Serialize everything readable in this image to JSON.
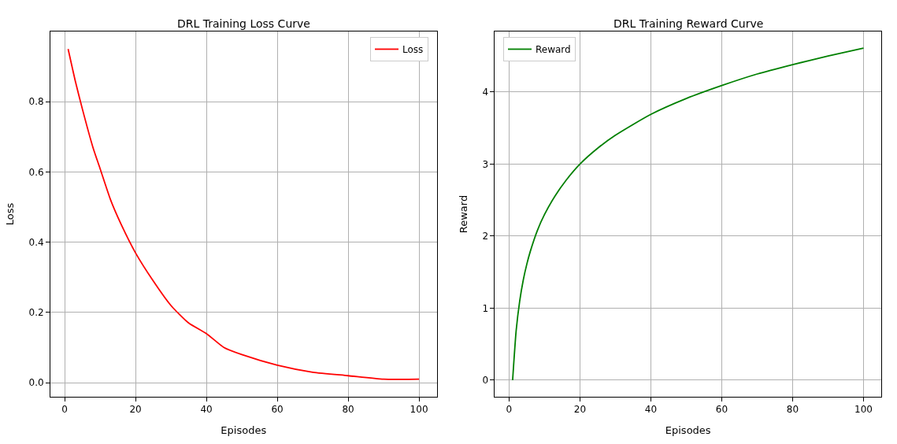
{
  "chart_data": [
    {
      "type": "line",
      "title": "DRL Training Loss Curve",
      "xlabel": "Episodes",
      "ylabel": "Loss",
      "x": [
        1,
        3,
        5,
        8,
        10,
        13,
        16,
        20,
        25,
        30,
        35,
        40,
        45,
        50,
        60,
        70,
        80,
        90,
        100
      ],
      "series": [
        {
          "name": "Loss",
          "color": "#ff0000",
          "values": [
            0.95,
            0.86,
            0.78,
            0.67,
            0.61,
            0.52,
            0.45,
            0.37,
            0.29,
            0.22,
            0.17,
            0.14,
            0.1,
            0.08,
            0.05,
            0.03,
            0.02,
            0.01,
            0.01
          ]
        }
      ],
      "xlim": [
        -4,
        105
      ],
      "ylim": [
        -0.04,
        1.0
      ],
      "xticks": [
        0,
        20,
        40,
        60,
        80,
        100
      ],
      "yticks": [
        {
          "value": 0,
          "label": "0.0"
        },
        {
          "value": 0.2,
          "label": "0.2"
        },
        {
          "value": 0.4,
          "label": "0.4"
        },
        {
          "value": 0.6,
          "label": "0.6"
        },
        {
          "value": 0.8,
          "label": "0.8"
        }
      ],
      "grid": true,
      "legend": "top right"
    },
    {
      "type": "line",
      "title": "DRL Training Reward Curve",
      "xlabel": "Episodes",
      "ylabel": "Reward",
      "x": [
        1,
        2,
        3,
        4,
        5,
        6,
        8,
        10,
        13,
        16,
        20,
        25,
        30,
        40,
        50,
        60,
        70,
        80,
        90,
        100
      ],
      "series": [
        {
          "name": "Reward",
          "color": "#008000",
          "values": [
            0,
            0.69,
            1.1,
            1.39,
            1.61,
            1.79,
            2.08,
            2.3,
            2.56,
            2.77,
            3.0,
            3.22,
            3.4,
            3.69,
            3.91,
            4.09,
            4.25,
            4.38,
            4.5,
            4.61
          ]
        }
      ],
      "xlim": [
        -4,
        105
      ],
      "ylim": [
        -0.23,
        4.84
      ],
      "xticks": [
        0,
        20,
        40,
        60,
        80,
        100
      ],
      "yticks": [
        0,
        1,
        2,
        3,
        4
      ],
      "grid": true,
      "legend": "top left"
    }
  ]
}
